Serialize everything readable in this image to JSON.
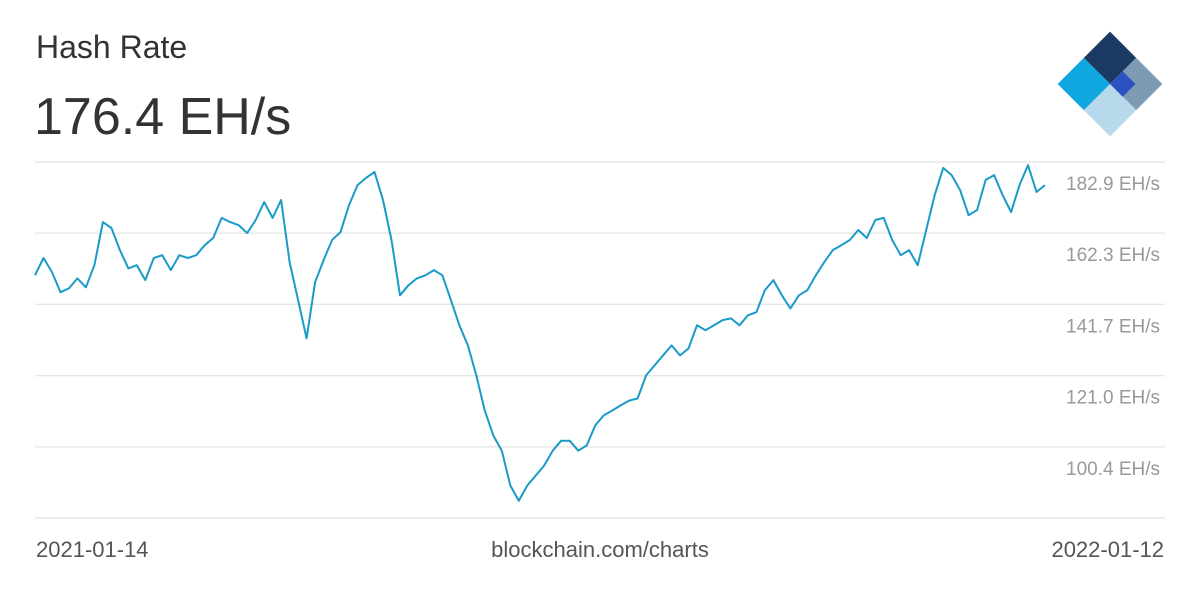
{
  "chart_data": {
    "type": "line",
    "title": "Hash Rate",
    "current_value": "176.4 EH/s",
    "source": "blockchain.com/charts",
    "x_range_labels": [
      "2021-01-14",
      "2022-01-12"
    ],
    "color": "#1a9bc7",
    "grid": true,
    "ylim": [
      79.8,
      182.9
    ],
    "yticks": [
      {
        "value": 100.4,
        "label": "100.4 EH/s"
      },
      {
        "value": 121.0,
        "label": "121.0 EH/s"
      },
      {
        "value": 141.7,
        "label": "141.7 EH/s"
      },
      {
        "value": 162.3,
        "label": "162.3 EH/s"
      },
      {
        "value": 182.9,
        "label": "182.9 EH/s"
      }
    ],
    "values": [
      150.1,
      155.1,
      151.0,
      145.2,
      146.3,
      149.2,
      146.6,
      153.0,
      165.5,
      163.8,
      157.4,
      152.1,
      153.0,
      148.7,
      155.1,
      155.9,
      151.6,
      155.9,
      155.1,
      155.9,
      158.8,
      160.9,
      166.7,
      165.5,
      164.6,
      162.3,
      166.1,
      171.3,
      166.7,
      171.9,
      153.9,
      142.9,
      131.8,
      148.1,
      154.5,
      160.3,
      162.6,
      170.4,
      176.2,
      178.3,
      180.0,
      171.9,
      160.3,
      144.3,
      147.2,
      149.2,
      150.1,
      151.6,
      150.1,
      142.9,
      135.6,
      129.8,
      121.1,
      110.9,
      103.7,
      99.3,
      89.2,
      84.8,
      89.2,
      92.1,
      95.0,
      99.3,
      102.2,
      102.2,
      99.3,
      100.8,
      106.6,
      109.5,
      110.9,
      112.4,
      113.8,
      114.4,
      121.1,
      124.0,
      126.9,
      129.8,
      126.9,
      128.9,
      135.6,
      134.2,
      135.6,
      137.1,
      137.6,
      135.6,
      138.5,
      139.4,
      145.8,
      148.7,
      144.3,
      140.5,
      144.3,
      145.8,
      150.1,
      153.9,
      157.4,
      158.8,
      160.3,
      163.2,
      160.9,
      166.1,
      166.7,
      160.3,
      155.9,
      157.4,
      153.0,
      163.2,
      173.3,
      181.2,
      179.1,
      174.8,
      167.5,
      169.0,
      177.7,
      179.1,
      173.3,
      168.4,
      176.2,
      182.0,
      174.2,
      176.2
    ]
  }
}
